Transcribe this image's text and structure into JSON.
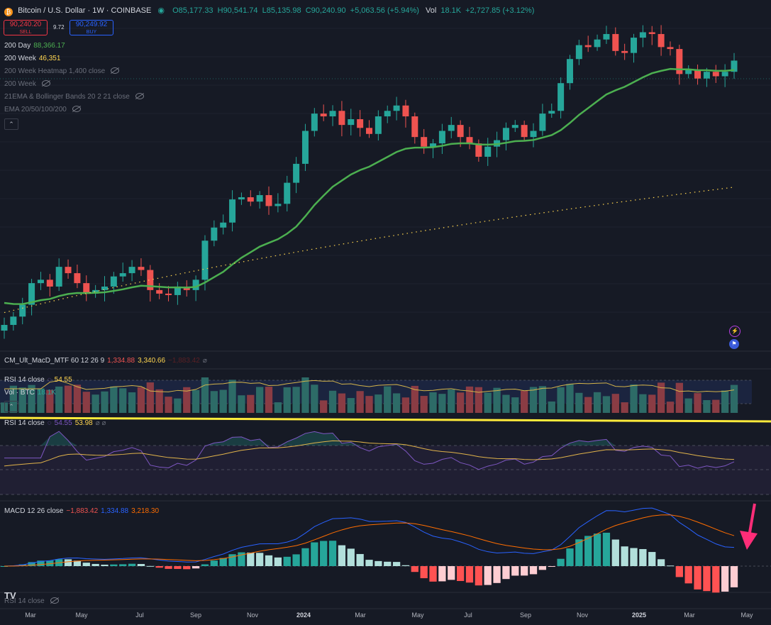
{
  "header": {
    "symbol": "Bitcoin / U.S. Dollar · 1W · COINBASE",
    "open": "O85,177.33",
    "high": "H90,541.74",
    "low": "L85,135.98",
    "close": "C90,240.90",
    "change": "+5,063.56 (+5.94%)",
    "vol_label": "Vol",
    "vol_value": "18.1K",
    "vol_change": "+2,727.85 (+3.12%)"
  },
  "trade": {
    "sell_price": "90,240.20",
    "sell_label": "SELL",
    "spread": "9.72",
    "buy_price": "90,249.92",
    "buy_label": "BUY"
  },
  "indicators": [
    {
      "name": "200 Day",
      "value": "88,366.17"
    },
    {
      "name": "200 Week",
      "value": "46,351"
    },
    {
      "name": "200 Week Heatmap 1,400 close",
      "value": ""
    },
    {
      "name": "200 Week",
      "value": ""
    },
    {
      "name": "21EMA & Bollinger Bands 20 2 21 close",
      "value": ""
    },
    {
      "name": "EMA 20/50/100/200",
      "value": ""
    }
  ],
  "panes": {
    "macd_mtf": {
      "name": "CM_Ult_MacD_MTF 60 12 26 9",
      "v1": "1,334.88",
      "v2": "3,340.66",
      "v3": "−1,883.42"
    },
    "rsi_overlay": {
      "name": "RSI 14 close",
      "value": "54.55"
    },
    "vol": {
      "name": "Vol · BTC",
      "value": "18.1K"
    },
    "rsi": {
      "name": "RSI 14 close",
      "v1": "54.55",
      "v2": "53.98"
    },
    "macd": {
      "name": "MACD 12 26 close",
      "v1": "−1,883.42",
      "v2": "1,334.88",
      "v3": "3,218.30"
    },
    "rsi_hidden": {
      "name": "RSI 14 close"
    }
  },
  "axis": {
    "months": [
      "Mar",
      "May",
      "Jul",
      "Sep",
      "Nov",
      "2024",
      "Mar",
      "May",
      "Jul",
      "Sep",
      "Nov",
      "2025",
      "Mar",
      "May"
    ]
  },
  "logo_text": "TV",
  "colors": {
    "up": "#26a69a",
    "down": "#ef5350",
    "ma200d": "#4caf50",
    "ma200w": "#ffd54f",
    "rsi": "#7e57c2",
    "macd": "#2962ff",
    "signal": "#ff6d00",
    "annotation_line": "#ffeb3b",
    "arrow": "#ff2d78"
  },
  "chart_data": {
    "type": "candlestick",
    "period": "weekly",
    "approx_close_path": [
      22000,
      23000,
      24500,
      27500,
      28000,
      27000,
      30000,
      29000,
      27500,
      26000,
      26500,
      27000,
      28500,
      29000,
      30000,
      29500,
      26500,
      26000,
      25800,
      27000,
      26500,
      28000,
      34500,
      37000,
      38000,
      43000,
      43500,
      42500,
      44000,
      41500,
      42000,
      47000,
      52000,
      62000,
      68000,
      67000,
      69000,
      64000,
      66000,
      63000,
      61000,
      67000,
      69000,
      71000,
      67000,
      60000,
      57000,
      58000,
      62000,
      64000,
      60000,
      58000,
      54000,
      57000,
      59000,
      63000,
      64000,
      60000,
      62000,
      68000,
      69000,
      80000,
      91000,
      98000,
      97000,
      101000,
      104000,
      95000,
      94000,
      102000,
      105000,
      104000,
      97000,
      96000,
      84000,
      86000,
      82000,
      85000,
      83000,
      85000,
      90240
    ]
  }
}
